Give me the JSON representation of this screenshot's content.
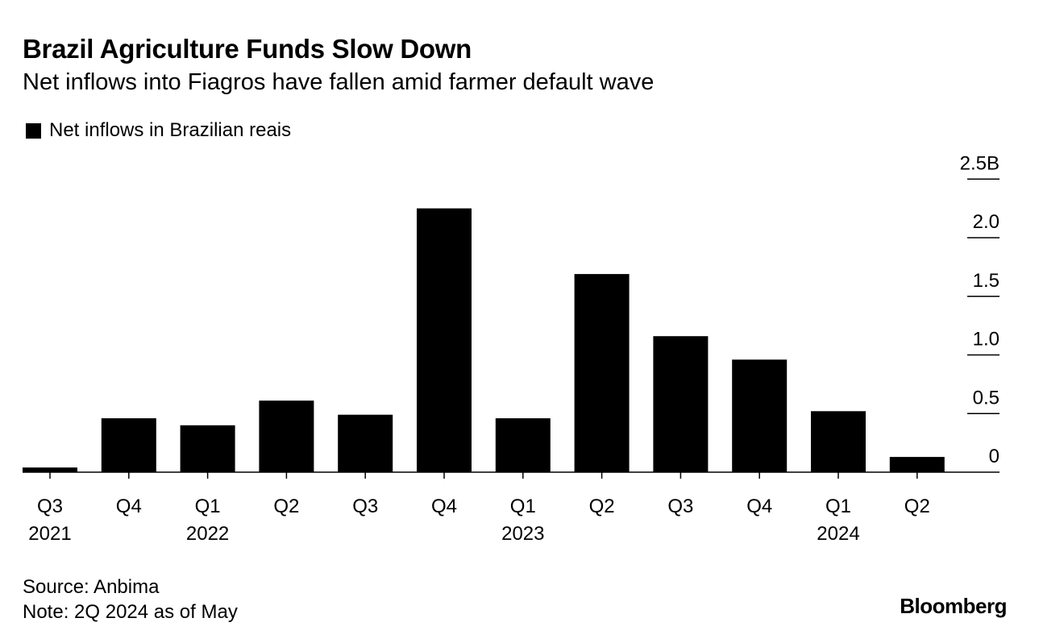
{
  "header": {
    "title": "Brazil Agriculture Funds Slow Down",
    "subtitle": "Net inflows into Fiagros have fallen amid farmer default wave"
  },
  "legend": {
    "label": "Net inflows in Brazilian reais",
    "color": "#000000"
  },
  "footer": {
    "source": "Source: Anbima",
    "note": "Note: 2Q 2024 as of May",
    "brand": "Bloomberg"
  },
  "chart_data": {
    "type": "bar",
    "categories": [
      "Q3 2021",
      "Q4 2021",
      "Q1 2022",
      "Q2 2022",
      "Q3 2022",
      "Q4 2022",
      "Q1 2023",
      "Q2 2023",
      "Q3 2023",
      "Q4 2023",
      "Q1 2024",
      "Q2 2024"
    ],
    "tick_labels": [
      {
        "quarter": "Q3",
        "year": "2021"
      },
      {
        "quarter": "Q4",
        "year": ""
      },
      {
        "quarter": "Q1",
        "year": "2022"
      },
      {
        "quarter": "Q2",
        "year": ""
      },
      {
        "quarter": "Q3",
        "year": ""
      },
      {
        "quarter": "Q4",
        "year": ""
      },
      {
        "quarter": "Q1",
        "year": "2023"
      },
      {
        "quarter": "Q2",
        "year": ""
      },
      {
        "quarter": "Q3",
        "year": ""
      },
      {
        "quarter": "Q4",
        "year": ""
      },
      {
        "quarter": "Q1",
        "year": "2024"
      },
      {
        "quarter": "Q2",
        "year": ""
      }
    ],
    "series": [
      {
        "values": [
          0.04,
          0.46,
          0.4,
          0.61,
          0.49,
          2.25,
          0.46,
          1.69,
          1.16,
          0.96,
          0.52,
          0.13
        ],
        "color": "#000000"
      }
    ],
    "y_ticks": [
      {
        "value": 0,
        "label": "0"
      },
      {
        "value": 0.5,
        "label": "0.5"
      },
      {
        "value": 1.0,
        "label": "1.0"
      },
      {
        "value": 1.5,
        "label": "1.5"
      },
      {
        "value": 2.0,
        "label": "2.0"
      },
      {
        "value": 2.5,
        "label": "2.5B"
      }
    ],
    "ylim": [
      0,
      2.5
    ],
    "y_axis_position": "right",
    "grid": false,
    "legend_position": "top-left"
  }
}
